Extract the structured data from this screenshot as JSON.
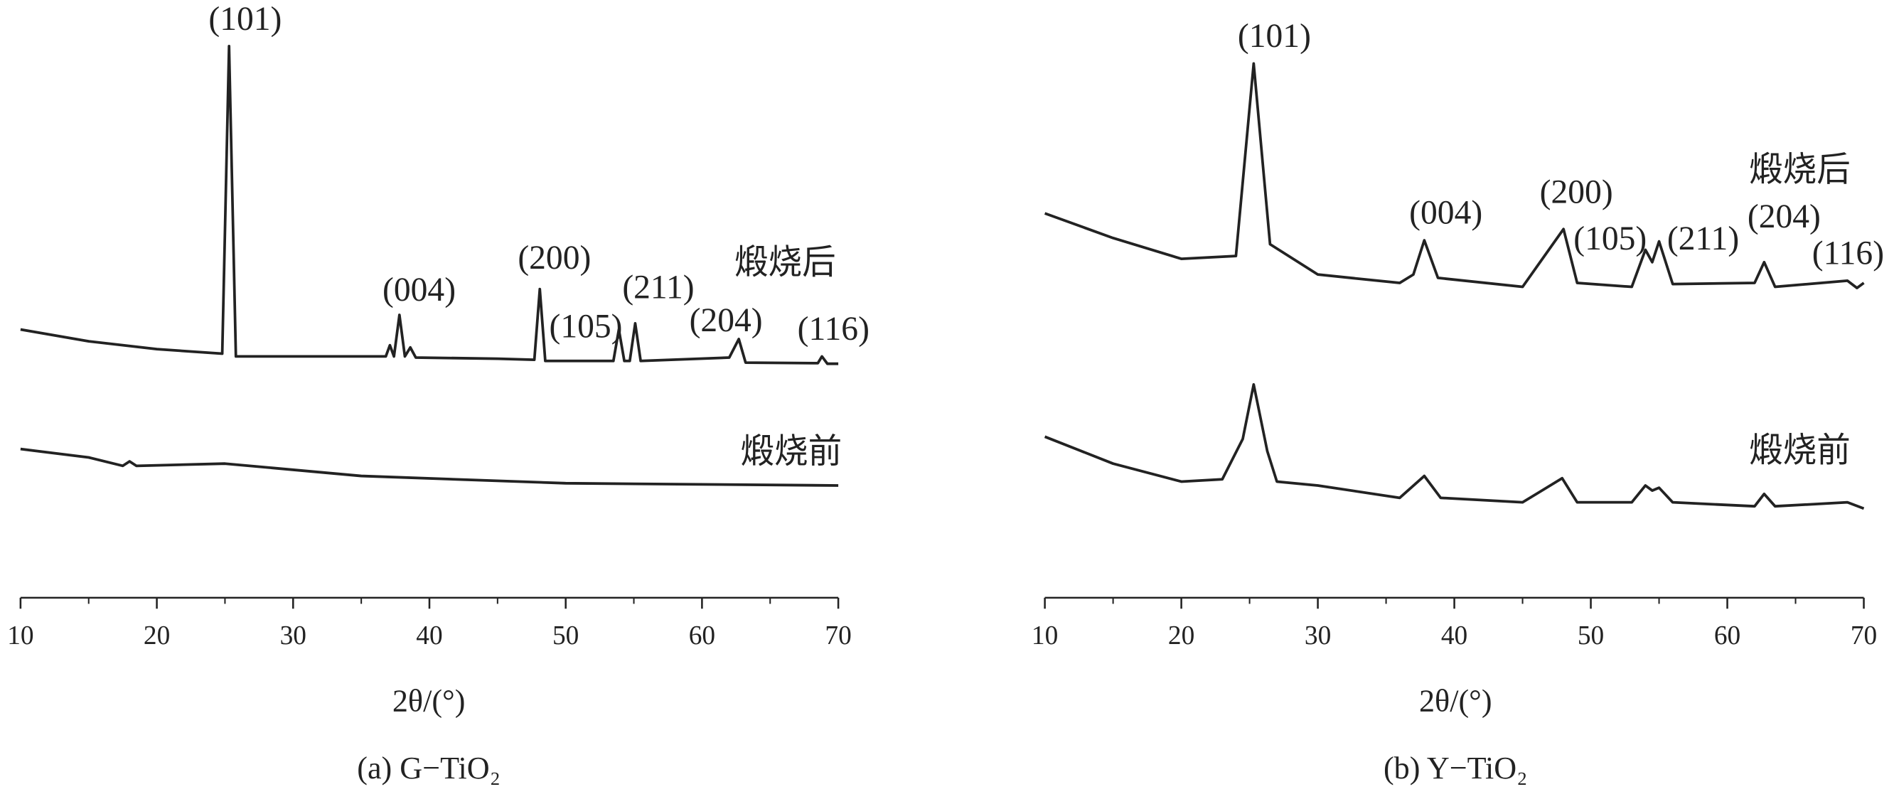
{
  "chart_data": [
    {
      "type": "line",
      "caption": "(a) G−TiO₂",
      "x_label": "2θ/(°)",
      "xlim": [
        10,
        70
      ],
      "xticks": [
        10,
        20,
        30,
        40,
        50,
        60,
        70
      ],
      "ylim": [
        0,
        100
      ],
      "annotations": [
        "(101)",
        "(004)",
        "(200)",
        "(105)",
        "(211)",
        "(204)",
        "(116)"
      ],
      "series": [
        {
          "name": "煅烧后",
          "color": "#222222",
          "x": [
            10,
            15,
            20,
            24.8,
            25.3,
            25.8,
            30,
            36.8,
            37.1,
            37.4,
            37.8,
            38.2,
            38.6,
            39,
            45,
            47.7,
            48.1,
            48.5,
            53.5,
            53.9,
            54.3,
            54.7,
            55.1,
            55.5,
            62,
            62.7,
            63.2,
            68.5,
            68.8,
            69.2,
            70
          ],
          "values": [
            47.8,
            45.7,
            44.3,
            43.5,
            98.3,
            43.0,
            43.0,
            43.0,
            45.0,
            43.0,
            50.4,
            43.0,
            44.6,
            42.8,
            42.6,
            42.4,
            55.0,
            42.2,
            42.2,
            47.8,
            42.2,
            42.2,
            48.9,
            42.2,
            42.8,
            46.1,
            41.9,
            41.8,
            43.0,
            41.7,
            41.7
          ]
        },
        {
          "name": "煅烧前",
          "color": "#222222",
          "x": [
            10,
            15,
            17.5,
            18,
            18.5,
            25,
            35,
            50,
            70
          ],
          "values": [
            26.5,
            25.0,
            23.5,
            24.3,
            23.5,
            23.9,
            21.7,
            20.4,
            20.0
          ]
        }
      ]
    },
    {
      "type": "line",
      "caption": "(b) Y−TiO₂",
      "x_label": "2θ/(°)",
      "xlim": [
        10,
        70
      ],
      "xticks": [
        10,
        20,
        30,
        40,
        50,
        60,
        70
      ],
      "ylim": [
        0,
        100
      ],
      "annotations": [
        "(101)",
        "(004)",
        "(200)",
        "(105)",
        "(211)",
        "(204)",
        "(116)"
      ],
      "series": [
        {
          "name": "煅烧后",
          "color": "#222222",
          "x": [
            10,
            15,
            20,
            24,
            25.3,
            26.5,
            30,
            36,
            37,
            37.8,
            38.8,
            45,
            48,
            49,
            53,
            54,
            54.5,
            55,
            56,
            62,
            62.7,
            63.5,
            68.8,
            69.5,
            70
          ],
          "values": [
            68.5,
            64.1,
            60.4,
            60.9,
            95.2,
            63.0,
            57.6,
            56.1,
            57.6,
            63.7,
            57.0,
            55.4,
            65.7,
            56.1,
            55.4,
            62.0,
            59.8,
            63.5,
            55.9,
            56.1,
            59.8,
            55.4,
            56.5,
            55.2,
            56.1
          ]
        },
        {
          "name": "煅烧前",
          "color": "#222222",
          "x": [
            10,
            15,
            20,
            23,
            24.5,
            25.3,
            26.3,
            27,
            30,
            36,
            37.8,
            39,
            45,
            47.9,
            49,
            53,
            54,
            54.5,
            55,
            56,
            62,
            62.7,
            63.5,
            68.8,
            70
          ],
          "values": [
            28.7,
            23.9,
            20.7,
            21.1,
            28.3,
            38.0,
            26.1,
            20.7,
            20.0,
            17.8,
            21.7,
            17.8,
            17.0,
            21.3,
            17.0,
            17.0,
            20.0,
            19.1,
            19.6,
            17.0,
            16.3,
            18.5,
            16.3,
            17.0,
            15.9
          ]
        }
      ]
    }
  ]
}
